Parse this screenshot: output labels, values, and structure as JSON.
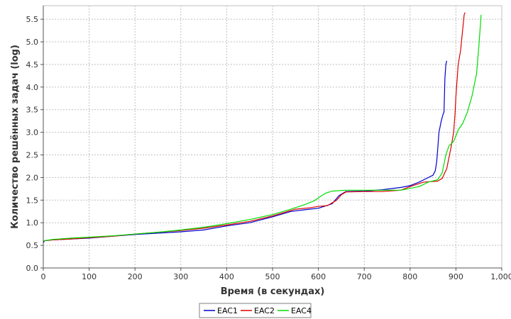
{
  "chart_data": {
    "type": "line",
    "title": "",
    "xlabel": "Время (в секундах)",
    "ylabel": "Количество решённых задач (log)",
    "xlim": [
      0,
      1000
    ],
    "ylim": [
      0,
      5.8
    ],
    "x_ticks": [
      "0",
      "100",
      "200",
      "300",
      "400",
      "500",
      "600",
      "700",
      "800",
      "900",
      "1,000"
    ],
    "y_ticks": [
      "0.0",
      "0.5",
      "1.0",
      "1.5",
      "2.0",
      "2.5",
      "3.0",
      "3.5",
      "4.0",
      "4.5",
      "5.0",
      "5.5"
    ],
    "x_tick_values": [
      0,
      100,
      200,
      300,
      400,
      500,
      600,
      700,
      800,
      900,
      1000
    ],
    "y_tick_values": [
      0,
      0.5,
      1.0,
      1.5,
      2.0,
      2.5,
      3.0,
      3.5,
      4.0,
      4.5,
      5.0,
      5.5
    ],
    "grid": true,
    "legend_position": "bottom-center",
    "series": [
      {
        "name": "EAC1",
        "color": "#0000cc",
        "points": [
          [
            0,
            0.55
          ],
          [
            2,
            0.6
          ],
          [
            20,
            0.62
          ],
          [
            60,
            0.64
          ],
          [
            100,
            0.66
          ],
          [
            150,
            0.7
          ],
          [
            200,
            0.74
          ],
          [
            250,
            0.77
          ],
          [
            300,
            0.8
          ],
          [
            350,
            0.84
          ],
          [
            400,
            0.93
          ],
          [
            450,
            1.0
          ],
          [
            500,
            1.13
          ],
          [
            540,
            1.25
          ],
          [
            580,
            1.3
          ],
          [
            600,
            1.32
          ],
          [
            630,
            1.42
          ],
          [
            645,
            1.6
          ],
          [
            660,
            1.69
          ],
          [
            700,
            1.7
          ],
          [
            740,
            1.73
          ],
          [
            780,
            1.78
          ],
          [
            800,
            1.82
          ],
          [
            820,
            1.9
          ],
          [
            840,
            2.0
          ],
          [
            850,
            2.05
          ],
          [
            855,
            2.15
          ],
          [
            858,
            2.35
          ],
          [
            860,
            2.6
          ],
          [
            863,
            3.0
          ],
          [
            868,
            3.25
          ],
          [
            872,
            3.4
          ],
          [
            874,
            3.45
          ],
          [
            876,
            4.2
          ],
          [
            878,
            4.5
          ],
          [
            880,
            4.58
          ]
        ]
      },
      {
        "name": "EAC2",
        "color": "#dd0000",
        "points": [
          [
            0,
            0.6
          ],
          [
            20,
            0.62
          ],
          [
            60,
            0.64
          ],
          [
            100,
            0.67
          ],
          [
            150,
            0.7
          ],
          [
            200,
            0.75
          ],
          [
            250,
            0.79
          ],
          [
            300,
            0.83
          ],
          [
            350,
            0.88
          ],
          [
            400,
            0.95
          ],
          [
            450,
            1.03
          ],
          [
            500,
            1.15
          ],
          [
            550,
            1.3
          ],
          [
            580,
            1.33
          ],
          [
            600,
            1.36
          ],
          [
            620,
            1.38
          ],
          [
            640,
            1.5
          ],
          [
            650,
            1.62
          ],
          [
            660,
            1.68
          ],
          [
            700,
            1.69
          ],
          [
            740,
            1.69
          ],
          [
            780,
            1.72
          ],
          [
            800,
            1.8
          ],
          [
            830,
            1.9
          ],
          [
            860,
            1.92
          ],
          [
            870,
            1.98
          ],
          [
            880,
            2.2
          ],
          [
            885,
            2.45
          ],
          [
            890,
            2.7
          ],
          [
            895,
            3.0
          ],
          [
            898,
            3.4
          ],
          [
            900,
            3.8
          ],
          [
            905,
            4.5
          ],
          [
            910,
            4.8
          ],
          [
            915,
            5.3
          ],
          [
            918,
            5.6
          ],
          [
            920,
            5.65
          ]
        ]
      },
      {
        "name": "EAC4",
        "color": "#00dd00",
        "points": [
          [
            0,
            0.6
          ],
          [
            20,
            0.63
          ],
          [
            60,
            0.66
          ],
          [
            100,
            0.68
          ],
          [
            150,
            0.71
          ],
          [
            200,
            0.75
          ],
          [
            250,
            0.79
          ],
          [
            300,
            0.84
          ],
          [
            350,
            0.9
          ],
          [
            400,
            0.98
          ],
          [
            450,
            1.07
          ],
          [
            500,
            1.18
          ],
          [
            540,
            1.3
          ],
          [
            570,
            1.4
          ],
          [
            590,
            1.48
          ],
          [
            600,
            1.55
          ],
          [
            615,
            1.65
          ],
          [
            630,
            1.7
          ],
          [
            660,
            1.72
          ],
          [
            700,
            1.72
          ],
          [
            740,
            1.72
          ],
          [
            780,
            1.72
          ],
          [
            820,
            1.8
          ],
          [
            840,
            1.9
          ],
          [
            860,
            1.95
          ],
          [
            870,
            2.1
          ],
          [
            878,
            2.5
          ],
          [
            885,
            2.7
          ],
          [
            895,
            2.8
          ],
          [
            905,
            3.05
          ],
          [
            915,
            3.2
          ],
          [
            925,
            3.45
          ],
          [
            935,
            3.8
          ],
          [
            945,
            4.3
          ],
          [
            950,
            4.9
          ],
          [
            955,
            5.6
          ]
        ]
      }
    ]
  }
}
